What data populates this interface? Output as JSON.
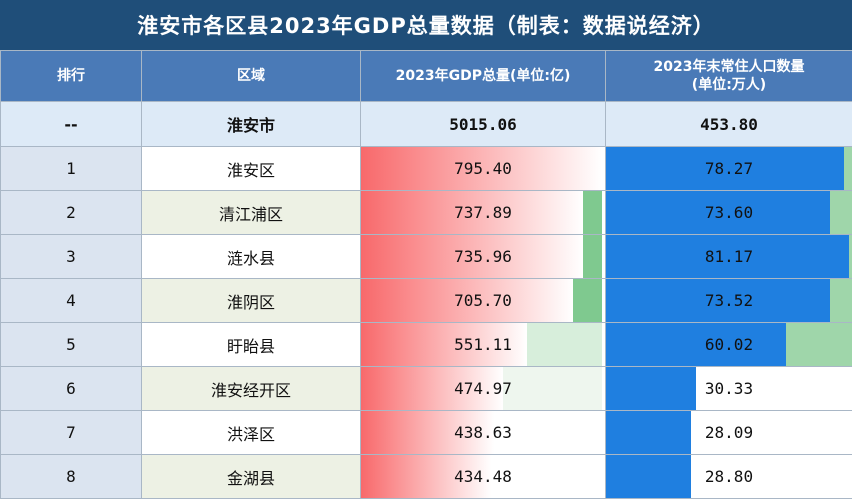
{
  "title": "淮安市各区县2023年GDP总量数据（制表：数据说经济）",
  "headers": {
    "rank": "排行",
    "district": "区域",
    "gdp": "2023年GDP总量(单位:亿)",
    "pop_line1": "2023年末常住人口数量",
    "pop_line2": "(单位:万人)"
  },
  "total": {
    "rank": "--",
    "name": "淮安市",
    "gdp": "5015.06",
    "pop": "453.80"
  },
  "rows": [
    {
      "rank": "1",
      "name": "淮安区",
      "gdp": "795.40",
      "pop": "78.27",
      "gdp_fill": 1.0,
      "pop_fill": 0.98
    },
    {
      "rank": "2",
      "name": "清江浦区",
      "gdp": "737.89",
      "pop": "73.60",
      "gdp_fill": 0.92,
      "pop_fill": 0.92
    },
    {
      "rank": "3",
      "name": "涟水县",
      "gdp": "735.96",
      "pop": "81.17",
      "gdp_fill": 0.92,
      "pop_fill": 1.0
    },
    {
      "rank": "4",
      "name": "淮阴区",
      "gdp": "705.70",
      "pop": "73.52",
      "gdp_fill": 0.88,
      "pop_fill": 0.92
    },
    {
      "rank": "5",
      "name": "盱眙县",
      "gdp": "551.11",
      "pop": "60.02",
      "gdp_fill": 0.69,
      "pop_fill": 0.74
    },
    {
      "rank": "6",
      "name": "淮安经开区",
      "gdp": "474.97",
      "pop": "30.33",
      "gdp_fill": 0.59,
      "pop_fill": 0.37
    },
    {
      "rank": "7",
      "name": "洪泽区",
      "gdp": "438.63",
      "pop": "28.09",
      "gdp_fill": 0.55,
      "pop_fill": 0.35
    },
    {
      "rank": "8",
      "name": "金湖县",
      "gdp": "434.48",
      "pop": "28.80",
      "gdp_fill": 0.54,
      "pop_fill": 0.35
    }
  ],
  "colors": {
    "title_bg": "#1f4e79",
    "header_bg": "#4a7ab7",
    "gdp_bar": "#f8696b",
    "pop_bar": "#1f7fe0",
    "track_green": "#7fc98f"
  }
}
